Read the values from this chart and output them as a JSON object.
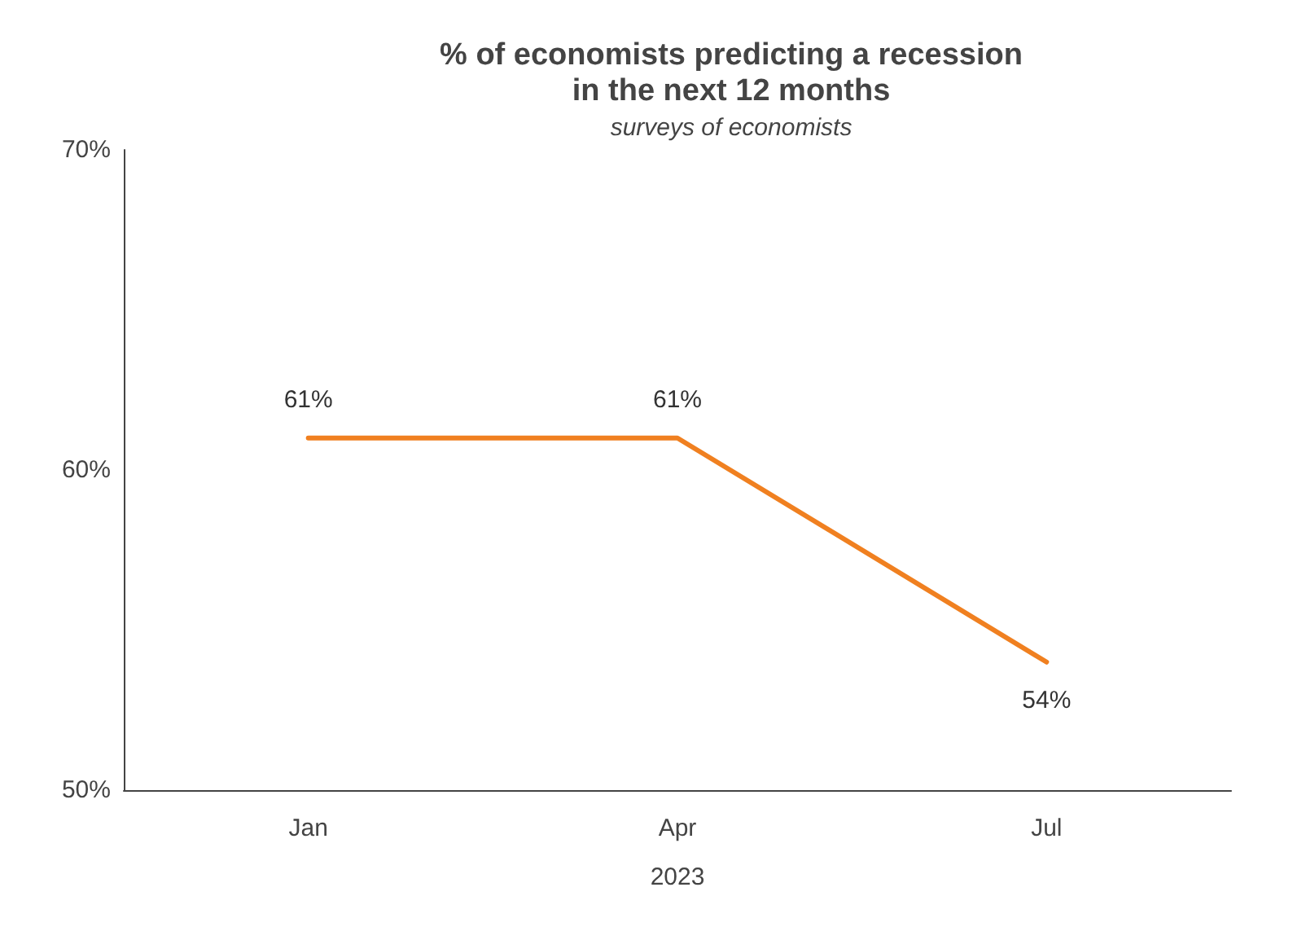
{
  "chart_data": {
    "type": "line",
    "title": "% of economists predicting a recession\nin the next 12 months",
    "subtitle": "surveys of economists",
    "xlabel": "2023",
    "categories": [
      "Jan",
      "Apr",
      "Jul"
    ],
    "series": [
      {
        "color": "#f08020",
        "values": [
          61,
          61,
          54
        ],
        "value_labels": [
          "61%",
          "61%",
          "54%"
        ]
      }
    ],
    "ylim": [
      50,
      70
    ],
    "yticks": [
      {
        "value": 50,
        "label": "50%"
      },
      {
        "value": 60,
        "label": "60%"
      },
      {
        "value": 70,
        "label": "70%"
      }
    ],
    "grid": false,
    "marker": "none",
    "line_style": "solid"
  }
}
